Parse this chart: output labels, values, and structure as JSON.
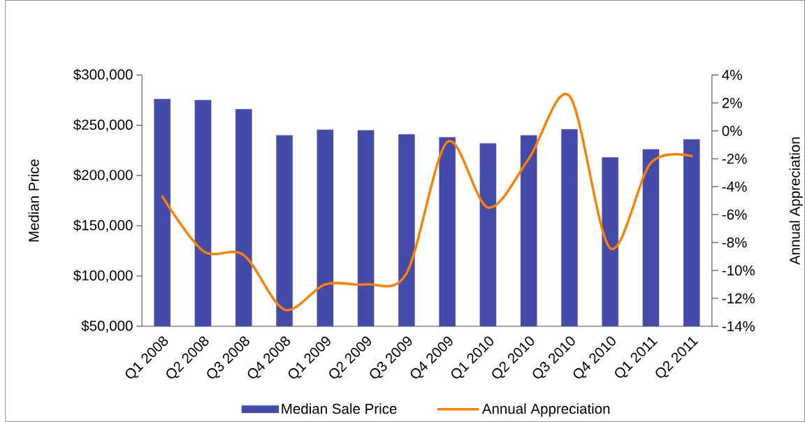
{
  "chart_data": {
    "type": "bar",
    "categories": [
      "Q1 2008",
      "Q2 2008",
      "Q3 2008",
      "Q4 2008",
      "Q1 2009",
      "Q2 2009",
      "Q3 2009",
      "Q4 2009",
      "Q1 2010",
      "Q2 2010",
      "Q3 2010",
      "Q4 2010",
      "Q1 2011",
      "Q2 2011"
    ],
    "ylabel": "Median Price",
    "y2label": "Annual Appreciation",
    "series": [
      {
        "name": "Median Sale Price",
        "color": "#434aa8",
        "values": [
          276000,
          275000,
          266000,
          240000,
          245500,
          245000,
          241000,
          238000,
          232000,
          240000,
          246000,
          218000,
          226000,
          236000
        ]
      },
      {
        "name": "Annual Appreciation",
        "type": "line",
        "axis": "y2",
        "color": "#ff7f00",
        "values": [
          -4.7,
          -8.6,
          -8.9,
          -12.8,
          -11.0,
          -11.0,
          -10.2,
          -0.8,
          -5.5,
          -2.0,
          2.5,
          -8.4,
          -2.3,
          -1.8
        ]
      }
    ],
    "ylim": [
      50000,
      300000
    ],
    "yticks": [
      {
        "value": 50000,
        "label": "$50,000"
      },
      {
        "value": 100000,
        "label": "$100,000"
      },
      {
        "value": 150000,
        "label": "$150,000"
      },
      {
        "value": 200000,
        "label": "$200,000"
      },
      {
        "value": 250000,
        "label": "$250,000"
      },
      {
        "value": 300000,
        "label": "$300,000"
      }
    ],
    "y2lim": [
      -14,
      4
    ],
    "y2ticks": [
      {
        "value": -14,
        "label": "-14%"
      },
      {
        "value": -12,
        "label": "-12%"
      },
      {
        "value": -10,
        "label": "-10%"
      },
      {
        "value": -8,
        "label": "-8%"
      },
      {
        "value": -6,
        "label": "-6%"
      },
      {
        "value": -4,
        "label": "-4%"
      },
      {
        "value": -2,
        "label": "-2%"
      },
      {
        "value": 0,
        "label": "0%"
      },
      {
        "value": 2,
        "label": "2%"
      },
      {
        "value": 4,
        "label": "4%"
      }
    ],
    "legend": "bottom",
    "grid": false
  }
}
